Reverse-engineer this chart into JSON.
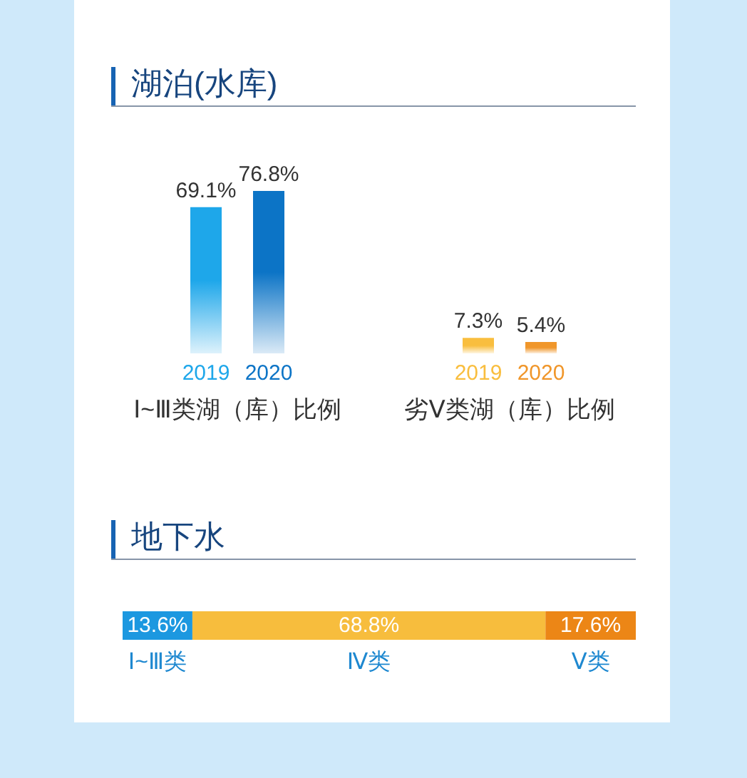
{
  "chart_data": [
    {
      "type": "bar",
      "title": "湖泊(水库)",
      "categories": [
        "Ⅰ~Ⅲ类湖（库）比例",
        "劣Ⅴ类湖（库）比例"
      ],
      "series": [
        {
          "name": "2019",
          "colors": [
            "#1ea7ea",
            "#f9be3e"
          ],
          "values": [
            69.1,
            7.3
          ],
          "value_labels": [
            "69.1%",
            "7.3%"
          ]
        },
        {
          "name": "2020",
          "colors": [
            "#0c74c6",
            "#f0962a"
          ],
          "values": [
            76.8,
            5.4
          ],
          "value_labels": [
            "76.8%",
            "5.4%"
          ]
        }
      ]
    },
    {
      "type": "bar",
      "title": "地下水",
      "orientation": "horizontal",
      "stacked": true,
      "categories": [
        null
      ],
      "series": [
        {
          "name": "Ⅰ~Ⅲ类",
          "color": "#1c98e0",
          "values": [
            13.6
          ],
          "value_labels": [
            "13.6%"
          ]
        },
        {
          "name": "Ⅳ类",
          "color": "#f7bd3d",
          "values": [
            68.8
          ],
          "value_labels": [
            "68.8%"
          ]
        },
        {
          "name": "Ⅴ类",
          "color": "#ec8616",
          "values": [
            17.6
          ],
          "value_labels": [
            "17.6%"
          ]
        }
      ]
    }
  ]
}
